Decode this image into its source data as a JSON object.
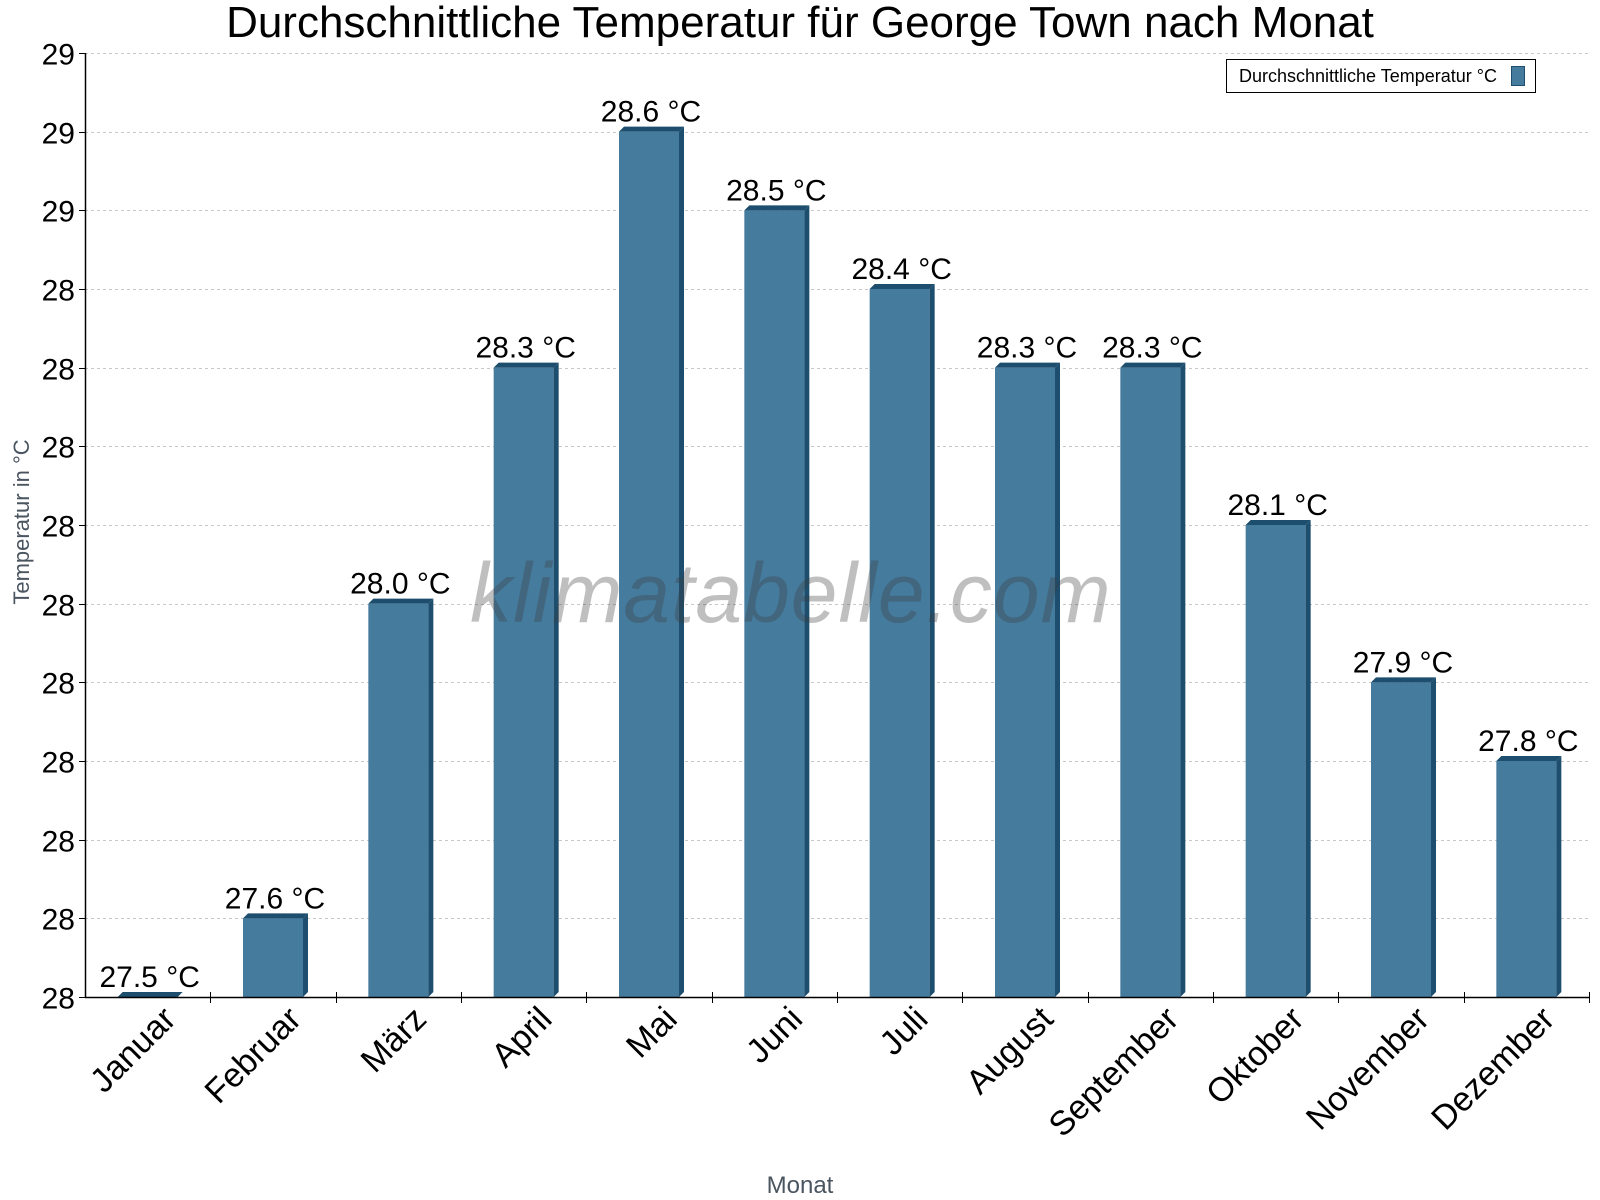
{
  "chart": {
    "title": "Durchschnittliche Temperatur für George Town nach Monat",
    "legend_label": "Durchschnittliche Temperatur °C",
    "watermark": "klimatabelle.com",
    "xlabel": "Monat",
    "ylabel": "Temperatur in °C",
    "colors": {
      "bar": "#457b9d",
      "bar_edge": "#1d4e6e",
      "grid": "#c8c8c8",
      "axis": "#000000"
    }
  },
  "chart_data": {
    "type": "bar",
    "title": "Durchschnittliche Temperatur für George Town nach Monat",
    "xlabel": "Monat",
    "ylabel": "Temperatur in °C",
    "categories": [
      "Januar",
      "Februar",
      "März",
      "April",
      "Mai",
      "Juni",
      "Juli",
      "August",
      "September",
      "Oktober",
      "November",
      "Dezember"
    ],
    "series": [
      {
        "name": "Durchschnittliche Temperatur °C",
        "values": [
          27.5,
          27.6,
          28.0,
          28.3,
          28.6,
          28.5,
          28.4,
          28.3,
          28.3,
          28.1,
          27.9,
          27.8
        ]
      }
    ],
    "value_labels": [
      "27.5 °C",
      "27.6 °C",
      "28.0 °C",
      "28.3 °C",
      "28.6 °C",
      "28.5 °C",
      "28.4 °C",
      "28.3 °C",
      "28.3 °C",
      "28.1 °C",
      "27.9 °C",
      "27.8 °C"
    ],
    "ylim": [
      27.5,
      28.7
    ],
    "yticks": [
      27.5,
      27.6,
      27.7,
      27.8,
      27.9,
      28.0,
      28.1,
      28.2,
      28.3,
      28.4,
      28.5,
      28.6,
      28.7
    ],
    "ytick_labels": [
      "28",
      "28",
      "28",
      "28",
      "28",
      "28",
      "28",
      "28",
      "28",
      "28",
      "29",
      "29",
      "29"
    ],
    "grid": true,
    "legend_position": "top-right"
  }
}
